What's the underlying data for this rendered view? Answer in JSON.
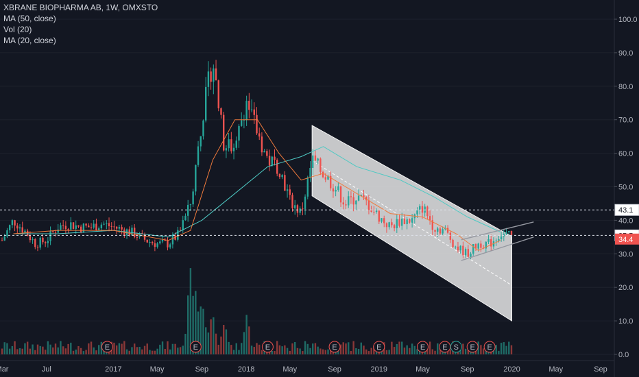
{
  "legend": {
    "title": "XBRANE BIOPHARMA AB, 1W, OMXSTO",
    "ma50": "MA (50, close)",
    "vol": "Vol (20)",
    "ma20": "MA (20, close)"
  },
  "colors": {
    "background": "#131722",
    "up": "#26a69a",
    "down": "#ef5350",
    "ma50": "#4ec9c3",
    "ma20": "#f07a3c",
    "channel": "#d8d8d8",
    "vol_up": "#1f6b66",
    "vol_down": "#8a3838",
    "grid_line": "#e0e3eb"
  },
  "chart_data": {
    "type": "candlestick",
    "title": "XBRANE BIOPHARMA AB, 1W, OMXSTO",
    "ylim": [
      0,
      100
    ],
    "yticks": [
      0.0,
      10.0,
      20.0,
      30.0,
      40.0,
      50.0,
      60.0,
      70.0,
      80.0,
      90.0,
      100.0
    ],
    "ytick_labels": [
      "0.0",
      "10.0",
      "20.0",
      "30.0",
      "40.0",
      "50.0",
      "60.0",
      "70.0",
      "80.0",
      "90.0",
      "100.0"
    ],
    "xtick_labels": [
      "Mar",
      "Jul",
      "2017",
      "May",
      "Sep",
      "2018",
      "May",
      "Sep",
      "2019",
      "May",
      "Sep",
      "2020",
      "May",
      "Sep"
    ],
    "xtick_dates": [
      "2016-03-01",
      "2016-07-01",
      "2017-01-01",
      "2017-05-01",
      "2017-09-01",
      "2018-01-01",
      "2018-05-01",
      "2018-09-01",
      "2019-01-01",
      "2019-05-01",
      "2019-09-01",
      "2020-01-01",
      "2020-05-01",
      "2020-09-01"
    ],
    "xlim": [
      "2016-03-01",
      "2020-10-01"
    ],
    "price_path": [
      [
        "2016-03-01",
        34
      ],
      [
        "2016-04-01",
        40
      ],
      [
        "2016-05-01",
        37
      ],
      [
        "2016-06-01",
        33
      ],
      [
        "2016-07-01",
        34
      ],
      [
        "2016-08-01",
        38
      ],
      [
        "2016-09-01",
        39
      ],
      [
        "2016-10-01",
        38
      ],
      [
        "2016-11-01",
        38
      ],
      [
        "2016-12-01",
        39
      ],
      [
        "2017-01-01",
        38
      ],
      [
        "2017-02-01",
        37
      ],
      [
        "2017-03-01",
        36
      ],
      [
        "2017-04-01",
        34
      ],
      [
        "2017-05-01",
        33
      ],
      [
        "2017-06-01",
        33
      ],
      [
        "2017-07-01",
        36
      ],
      [
        "2017-08-01",
        45
      ],
      [
        "2017-09-01",
        70
      ],
      [
        "2017-10-01",
        88
      ],
      [
        "2017-11-01",
        62
      ],
      [
        "2017-12-01",
        62
      ],
      [
        "2018-01-01",
        76
      ],
      [
        "2018-02-01",
        66
      ],
      [
        "2018-03-01",
        58
      ],
      [
        "2018-04-01",
        56
      ],
      [
        "2018-05-01",
        46
      ],
      [
        "2018-06-01",
        42
      ],
      [
        "2018-07-01",
        58
      ],
      [
        "2018-08-01",
        54
      ],
      [
        "2018-09-01",
        50
      ],
      [
        "2018-10-01",
        45
      ],
      [
        "2018-11-01",
        47
      ],
      [
        "2018-12-01",
        45
      ],
      [
        "2019-01-01",
        41
      ],
      [
        "2019-02-01",
        38
      ],
      [
        "2019-03-01",
        40
      ],
      [
        "2019-04-01",
        40
      ],
      [
        "2019-05-01",
        44
      ],
      [
        "2019-06-01",
        38
      ],
      [
        "2019-07-01",
        37
      ],
      [
        "2019-08-01",
        32
      ],
      [
        "2019-09-01",
        30
      ],
      [
        "2019-10-01",
        33
      ],
      [
        "2019-11-01",
        33
      ],
      [
        "2019-12-01",
        36
      ],
      [
        "2020-01-01",
        35
      ]
    ],
    "ma50_path": [
      [
        "2016-04-01",
        36
      ],
      [
        "2016-08-01",
        36
      ],
      [
        "2017-01-01",
        37
      ],
      [
        "2017-06-01",
        35
      ],
      [
        "2017-09-01",
        40
      ],
      [
        "2017-12-01",
        48
      ],
      [
        "2018-03-01",
        56
      ],
      [
        "2018-06-01",
        59
      ],
      [
        "2018-08-01",
        62
      ],
      [
        "2018-11-01",
        56
      ],
      [
        "2019-03-01",
        52
      ],
      [
        "2019-06-01",
        47
      ],
      [
        "2019-09-01",
        41
      ],
      [
        "2019-12-01",
        36.5
      ]
    ],
    "ma20_path": [
      [
        "2016-04-01",
        36
      ],
      [
        "2016-08-01",
        37
      ],
      [
        "2017-01-01",
        37
      ],
      [
        "2017-06-01",
        34
      ],
      [
        "2017-08-01",
        37
      ],
      [
        "2017-10-01",
        58
      ],
      [
        "2017-12-01",
        70
      ],
      [
        "2018-02-01",
        70
      ],
      [
        "2018-04-01",
        60
      ],
      [
        "2018-06-01",
        52
      ],
      [
        "2018-08-01",
        54
      ],
      [
        "2018-11-01",
        48
      ],
      [
        "2019-02-01",
        42
      ],
      [
        "2019-05-01",
        41
      ],
      [
        "2019-08-01",
        36
      ],
      [
        "2019-10-01",
        31
      ],
      [
        "2019-12-01",
        34
      ]
    ],
    "horizontal_lines": [
      {
        "value": 43.1,
        "label": "43.1"
      },
      {
        "value": 35.5,
        "label": "35.5"
      }
    ],
    "last_price": {
      "value": 34.4,
      "label": "34.4"
    },
    "regression_channel": {
      "start": "2018-07-01",
      "end": "2020-01-01",
      "upper": [
        68.3,
        35.2
      ],
      "lower": [
        47.3,
        10.0
      ],
      "mid": [
        57.8,
        20.6
      ]
    },
    "rising_channel": {
      "upper_start": [
        "2019-08-15",
        34.2
      ],
      "upper_end": [
        "2020-03-01",
        39.5
      ],
      "lower_start": [
        "2019-08-15",
        28.0
      ],
      "lower_end": [
        "2020-03-01",
        35.0
      ]
    },
    "volume_spikes": [
      [
        "2017-08-01",
        25
      ],
      [
        "2017-08-15",
        18
      ],
      [
        "2017-09-01",
        15
      ],
      [
        "2017-10-01",
        12
      ],
      [
        "2017-11-01",
        9
      ],
      [
        "2018-01-01",
        10
      ]
    ],
    "earnings_markers": [
      "2016-12-15",
      "2017-08-15",
      "2018-03-01",
      "2018-09-01",
      "2019-01-01",
      "2019-05-01",
      "2019-07-01",
      "2019-09-15",
      "2019-11-01"
    ],
    "earnings_label": "E",
    "split_marker": {
      "date": "2019-08-01",
      "label": "S"
    }
  }
}
